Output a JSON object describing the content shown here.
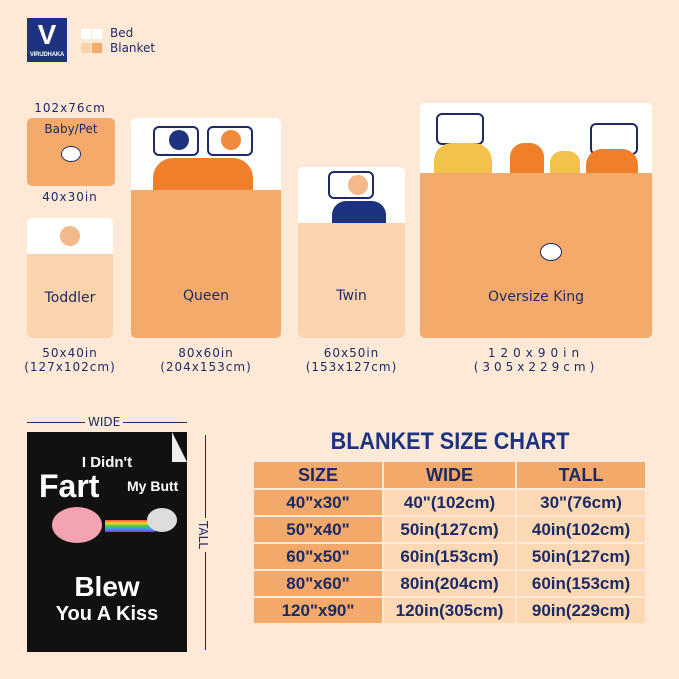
{
  "brand": {
    "logo_letter": "V",
    "name": "VIRUDHAKA"
  },
  "legend": {
    "bed": "Bed",
    "blanket": "Blanket",
    "colors": {
      "bed": "#ffffff",
      "blanket": "#f4aa6b",
      "light": "#fbd3ad"
    }
  },
  "sizes": {
    "baby": {
      "label": "Baby/Pet",
      "cm": "102x76cm",
      "inches": "40x30in"
    },
    "toddler": {
      "label": "Toddler",
      "inches": "50x40in",
      "cm": "(127x102cm)"
    },
    "queen": {
      "label": "Queen",
      "inches": "80x60in",
      "cm": "(204x153cm)"
    },
    "twin": {
      "label": "Twin",
      "inches": "60x50in",
      "cm": "(153x127cm)"
    },
    "king": {
      "label": "Oversize King",
      "inches": "120x90in",
      "cm": "(305x229cm)"
    }
  },
  "product": {
    "wide": "WIDE",
    "tall": "TALL",
    "line1": "I Didn't",
    "line2": "Fart",
    "line3": "My Butt",
    "line4": "Blew",
    "line5": "You A Kiss"
  },
  "chart": {
    "title": "BLANKET SIZE CHART",
    "headers": [
      "SIZE",
      "WIDE",
      "TALL"
    ],
    "rows": [
      [
        "40\"x30\"",
        "40\"(102cm)",
        "30\"(76cm)"
      ],
      [
        "50\"x40\"",
        "50in(127cm)",
        "40in(102cm)"
      ],
      [
        "60\"x50\"",
        "60in(153cm)",
        "50in(127cm)"
      ],
      [
        "80\"x60\"",
        "80in(204cm)",
        "60in(153cm)"
      ],
      [
        "120\"x90\"",
        "120in(305cm)",
        "90in(229cm)"
      ]
    ]
  }
}
